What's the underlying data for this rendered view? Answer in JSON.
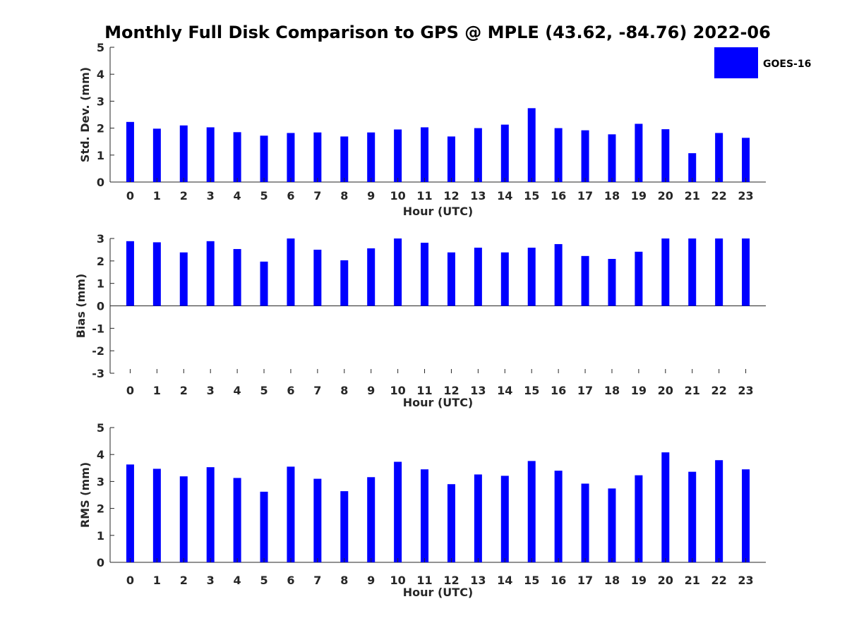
{
  "title": "Monthly Full Disk Comparison to GPS @ MPLE (43.62, -84.76) 2022-06",
  "legend": {
    "label": "GOES-16",
    "color": "#0000ff"
  },
  "chart_data": [
    {
      "type": "bar",
      "name": "std-dev",
      "series_name": "GOES-16",
      "xlabel": "Hour (UTC)",
      "ylabel": "Std. Dev. (mm)",
      "ylim": [
        0,
        5
      ],
      "yticks": [
        "0",
        "1",
        "2",
        "3",
        "4",
        "5"
      ],
      "categories": [
        "0",
        "1",
        "2",
        "3",
        "4",
        "5",
        "6",
        "7",
        "8",
        "9",
        "10",
        "11",
        "12",
        "13",
        "14",
        "15",
        "16",
        "17",
        "18",
        "19",
        "20",
        "21",
        "22",
        "23"
      ],
      "values": [
        2.23,
        1.98,
        2.1,
        2.03,
        1.85,
        1.72,
        1.82,
        1.84,
        1.69,
        1.84,
        1.95,
        2.03,
        1.69,
        2.0,
        2.13,
        2.74,
        2.0,
        1.92,
        1.77,
        2.16,
        1.96,
        1.07,
        1.82,
        1.64
      ]
    },
    {
      "type": "bar",
      "name": "bias",
      "series_name": "GOES-16",
      "xlabel": "Hour (UTC)",
      "ylabel": "Bias (mm)",
      "ylim": [
        -3,
        3
      ],
      "yticks": [
        "-3",
        "-2",
        "-1",
        "0",
        "1",
        "2",
        "3"
      ],
      "categories": [
        "0",
        "1",
        "2",
        "3",
        "4",
        "5",
        "6",
        "7",
        "8",
        "9",
        "10",
        "11",
        "12",
        "13",
        "14",
        "15",
        "16",
        "17",
        "18",
        "19",
        "20",
        "21",
        "22",
        "23"
      ],
      "values": [
        2.88,
        2.83,
        2.38,
        2.88,
        2.53,
        1.97,
        3.0,
        2.5,
        2.03,
        2.56,
        3.0,
        2.81,
        2.38,
        2.59,
        2.38,
        2.59,
        2.75,
        2.22,
        2.09,
        2.41,
        3.0,
        3.0,
        3.0,
        3.0
      ]
    },
    {
      "type": "bar",
      "name": "rms",
      "series_name": "GOES-16",
      "xlabel": "Hour (UTC)",
      "ylabel": "RMS (mm)",
      "ylim": [
        0,
        5
      ],
      "yticks": [
        "0",
        "1",
        "2",
        "3",
        "4",
        "5"
      ],
      "categories": [
        "0",
        "1",
        "2",
        "3",
        "4",
        "5",
        "6",
        "7",
        "8",
        "9",
        "10",
        "11",
        "12",
        "13",
        "14",
        "15",
        "16",
        "17",
        "18",
        "19",
        "20",
        "21",
        "22",
        "23"
      ],
      "values": [
        3.63,
        3.47,
        3.19,
        3.53,
        3.13,
        2.62,
        3.55,
        3.1,
        2.64,
        3.16,
        3.73,
        3.45,
        2.9,
        3.26,
        3.21,
        3.76,
        3.4,
        2.92,
        2.74,
        3.23,
        4.08,
        3.36,
        3.79,
        3.45
      ]
    }
  ]
}
